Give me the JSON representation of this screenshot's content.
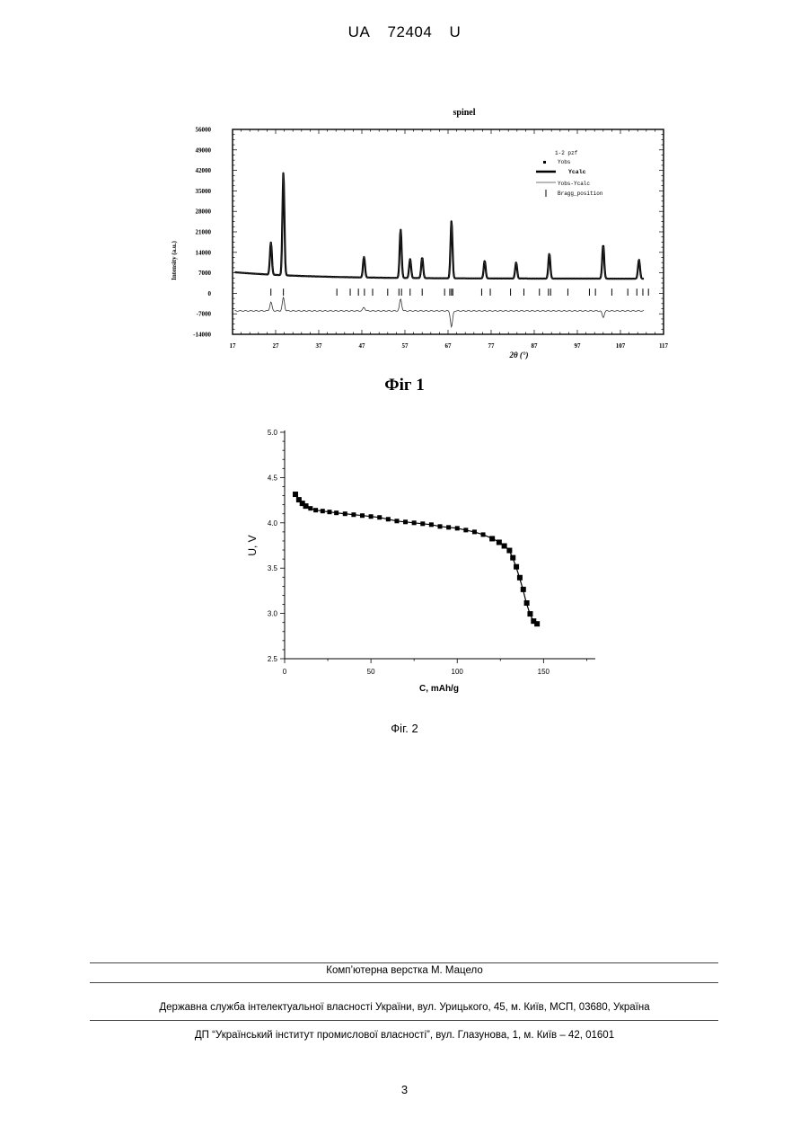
{
  "header": {
    "office": "UA",
    "number": "72404",
    "kind": "U"
  },
  "chart_data": [
    {
      "type": "line",
      "title": "spinel",
      "xlabel": "2θ (°)",
      "ylabel": "Intensity (a.u.)",
      "xlim": [
        17,
        117
      ],
      "ylim": [
        -14000,
        56000
      ],
      "x_ticks": [
        "17",
        "27",
        "37",
        "47",
        "57",
        "67",
        "77",
        "87",
        "97",
        "107",
        "117"
      ],
      "y_ticks": [
        "56000",
        "49000",
        "42000",
        "35000",
        "28000",
        "21000",
        "14000",
        "7000",
        "0",
        "-7000",
        "-14000"
      ],
      "legend_title": "1-2 pzf",
      "legend": [
        "Yobs",
        "Ycalc",
        "Yobs-Ycalc",
        "Bragg_position"
      ],
      "legend_placement": "top-right",
      "baseline": 5000,
      "peaks": [
        {
          "x": 25.9,
          "y": 11000
        },
        {
          "x": 28.8,
          "y": 35000
        },
        {
          "x": 47.5,
          "y": 7000
        },
        {
          "x": 56.0,
          "y": 16500
        },
        {
          "x": 58.2,
          "y": 6500
        },
        {
          "x": 61.0,
          "y": 7000
        },
        {
          "x": 67.8,
          "y": 19500
        },
        {
          "x": 75.5,
          "y": 6000
        },
        {
          "x": 82.8,
          "y": 5500
        },
        {
          "x": 90.5,
          "y": 8500
        },
        {
          "x": 103.0,
          "y": 11500
        },
        {
          "x": 111.3,
          "y": 6500
        }
      ],
      "bragg_positions": [
        25.9,
        28.8,
        41.2,
        44.3,
        46.2,
        47.6,
        49.5,
        53.0,
        55.6,
        56.2,
        58.2,
        61.0,
        66.2,
        67.4,
        67.8,
        68.1,
        74.8,
        76.8,
        81.5,
        84.6,
        88.2,
        90.3,
        90.8,
        94.8,
        99.8,
        101.2,
        105.0,
        108.7,
        110.8,
        112.2,
        113.5
      ],
      "difference_offset": -6000,
      "difference_peaks": [
        {
          "x": 25.9,
          "y": 3000
        },
        {
          "x": 28.8,
          "y": 4500
        },
        {
          "x": 47.5,
          "y": 1200
        },
        {
          "x": 56.0,
          "y": 4000
        },
        {
          "x": 67.8,
          "y": -5500
        },
        {
          "x": 103.0,
          "y": -2200
        }
      ],
      "caption": "Фіг 1"
    },
    {
      "type": "line",
      "xlabel": "C, mAh/g",
      "ylabel": "U, V",
      "xlim": [
        0,
        180
      ],
      "ylim": [
        2.5,
        5.0
      ],
      "x_ticks": [
        "0",
        "50",
        "100",
        "150"
      ],
      "y_ticks": [
        "5.0",
        "4.5",
        "4.0",
        "3.5",
        "3.0",
        "2.5"
      ],
      "series": [
        {
          "x": [
            6,
            8,
            10,
            12,
            15,
            18,
            22,
            26,
            30,
            35,
            40,
            45,
            50,
            55,
            60,
            65,
            70,
            75,
            80,
            85,
            90,
            95,
            100,
            105,
            110,
            115,
            120,
            124,
            127,
            130,
            132,
            134,
            136,
            138,
            140,
            142,
            144,
            146
          ],
          "y": [
            4.32,
            4.26,
            4.22,
            4.19,
            4.16,
            4.14,
            4.13,
            4.12,
            4.11,
            4.1,
            4.09,
            4.08,
            4.07,
            4.06,
            4.04,
            4.02,
            4.01,
            4.0,
            3.99,
            3.98,
            3.96,
            3.95,
            3.94,
            3.92,
            3.9,
            3.87,
            3.83,
            3.79,
            3.75,
            3.7,
            3.62,
            3.52,
            3.4,
            3.27,
            3.12,
            3.0,
            2.92,
            2.89
          ]
        }
      ],
      "caption": "Фіг. 2"
    }
  ],
  "footer": {
    "line1": "Комп’ютерна верстка М. Мацело",
    "line2": "Державна служба інтелектуальної власності України, вул. Урицького, 45, м. Київ, МСП, 03680, Україна",
    "line3": "ДП “Український інститут промислової власності”, вул. Глазунова, 1, м. Київ – 42, 01601"
  },
  "page_number": "3"
}
